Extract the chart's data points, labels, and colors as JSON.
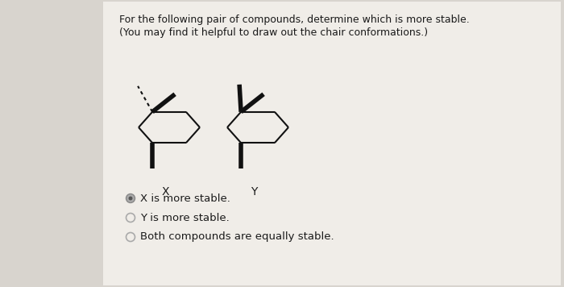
{
  "title_line1": "For the following pair of compounds, determine which is more stable.",
  "title_line2": "(You may find it helpful to draw out the chair conformations.)",
  "label_x": "X",
  "label_y": "Y",
  "option1": "X is more stable.",
  "option2": "Y is more stable.",
  "option3": "Both compounds are equally stable.",
  "bg_color": "#d8d4ce",
  "panel_color": "#f0ede8",
  "text_color": "#1a1a1a",
  "bond_color": "#111111",
  "title_fontsize": 9.0,
  "label_fontsize": 10,
  "option_fontsize": 9.5
}
